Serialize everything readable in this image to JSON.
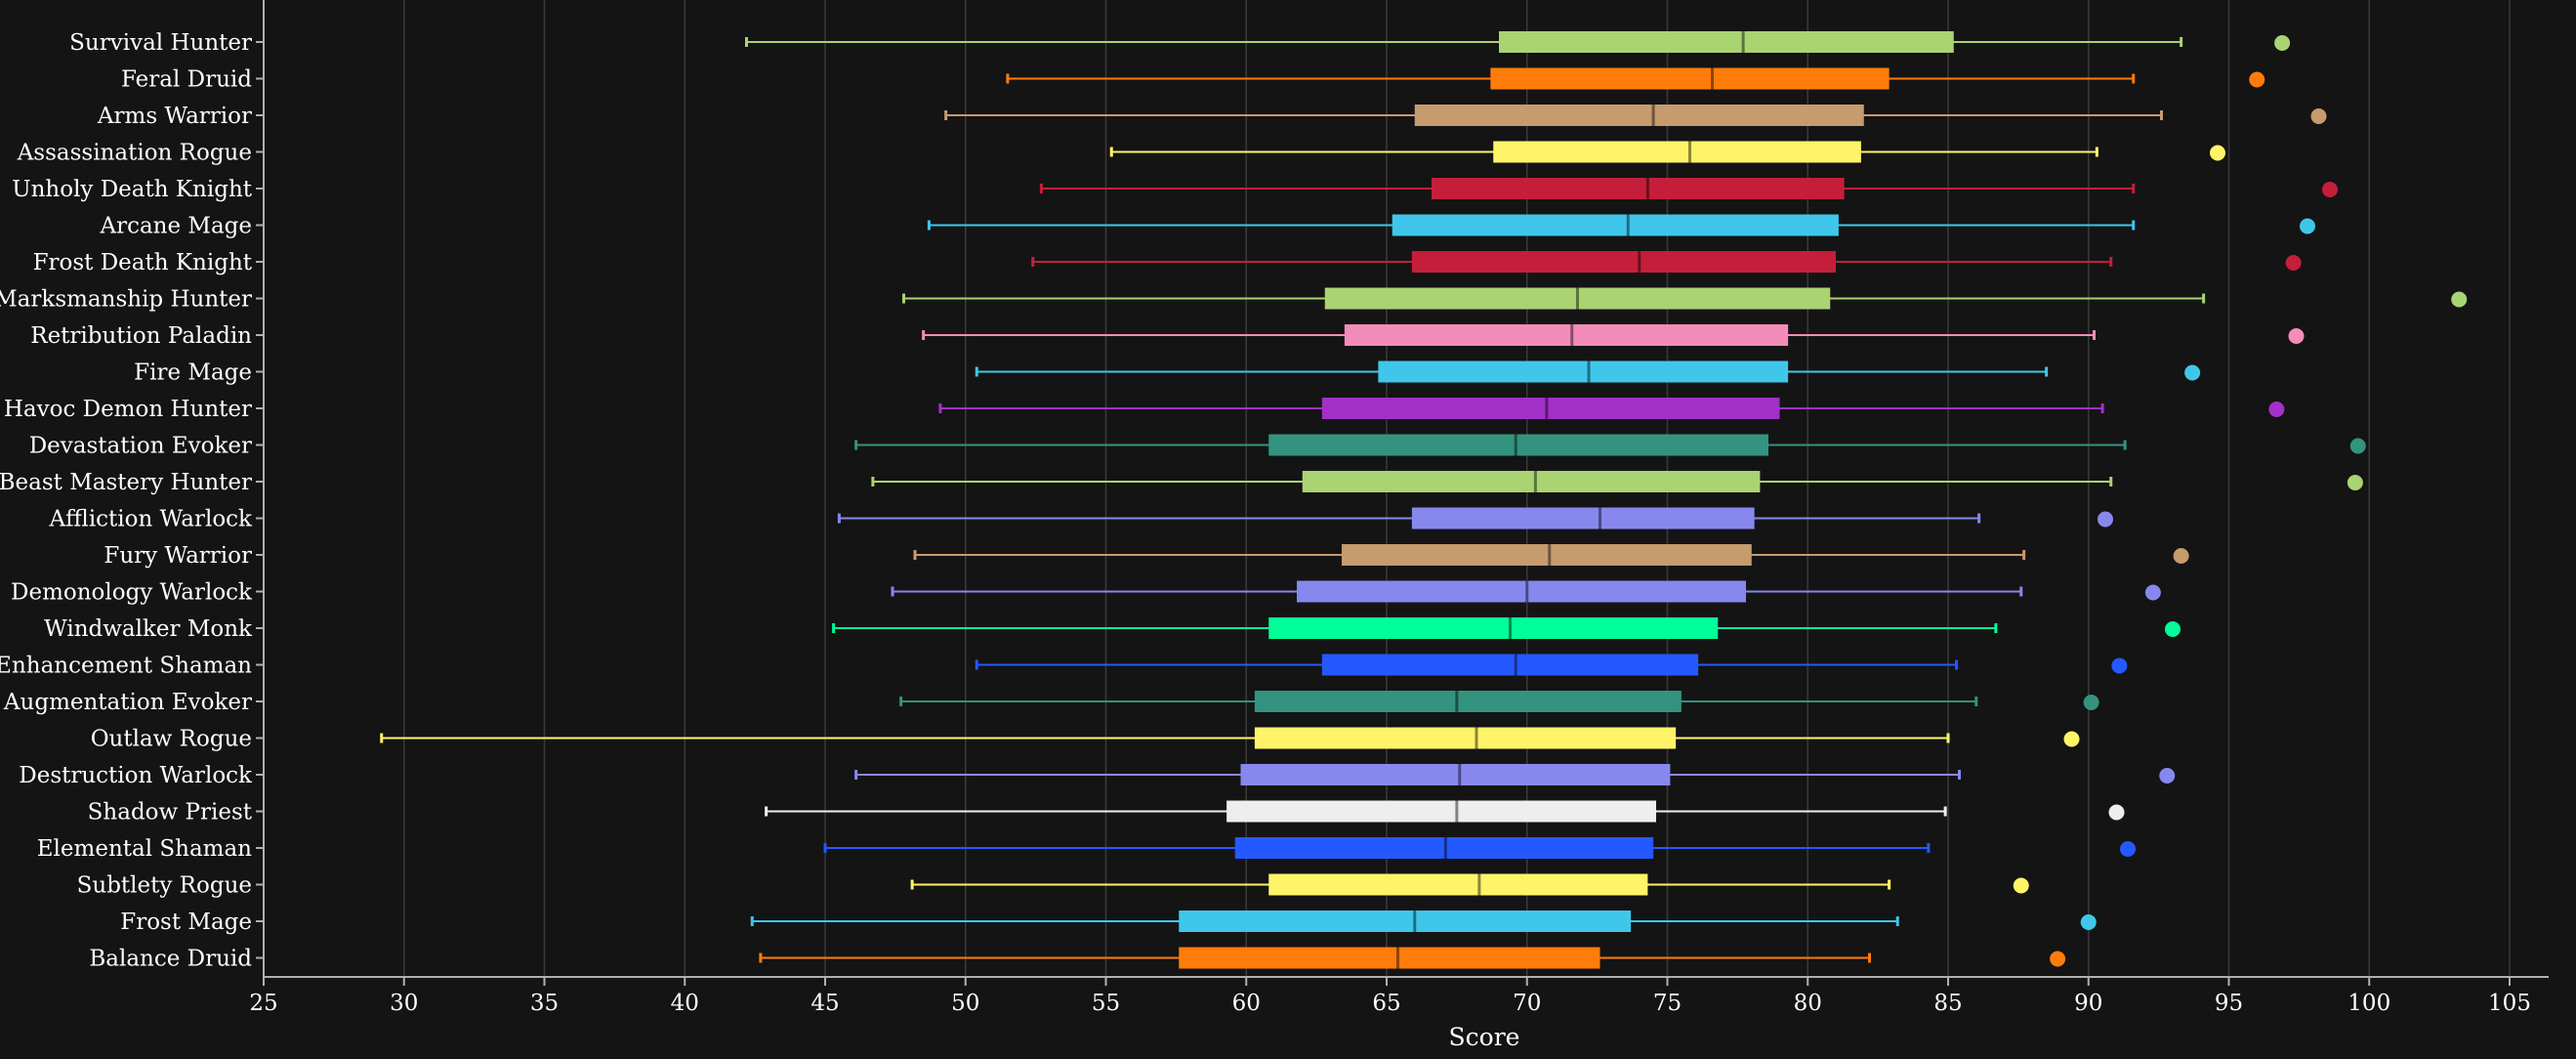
{
  "chart_data": {
    "type": "boxplot",
    "orientation": "horizontal",
    "xlabel": "Score",
    "xlim": [
      25,
      108
    ],
    "xticks": [
      25,
      30,
      35,
      40,
      45,
      50,
      55,
      60,
      65,
      70,
      75,
      80,
      85,
      90,
      95,
      100,
      105
    ],
    "grid": true,
    "legend": "none",
    "background": "#141414",
    "categories": [
      {
        "name": "Survival Hunter",
        "color": "#AAD372",
        "min": 42.2,
        "q1": 69.0,
        "median": 77.7,
        "q3": 85.2,
        "max": 93.3,
        "outlier": 96.9
      },
      {
        "name": "Feral Druid",
        "color": "#FF7C0A",
        "min": 51.5,
        "q1": 68.7,
        "median": 76.6,
        "q3": 82.9,
        "max": 91.6,
        "outlier": 96.0
      },
      {
        "name": "Arms Warrior",
        "color": "#C69B6D",
        "min": 49.3,
        "q1": 66.0,
        "median": 74.5,
        "q3": 82.0,
        "max": 92.6,
        "outlier": 98.2
      },
      {
        "name": "Assassination Rogue",
        "color": "#FFF468",
        "min": 55.2,
        "q1": 68.8,
        "median": 75.8,
        "q3": 81.9,
        "max": 90.3,
        "outlier": 94.6
      },
      {
        "name": "Unholy Death Knight",
        "color": "#C41E3A",
        "min": 52.7,
        "q1": 66.6,
        "median": 74.3,
        "q3": 81.3,
        "max": 91.6,
        "outlier": 98.6
      },
      {
        "name": "Arcane Mage",
        "color": "#3FC7EB",
        "min": 48.7,
        "q1": 65.2,
        "median": 73.6,
        "q3": 81.1,
        "max": 91.6,
        "outlier": 97.8
      },
      {
        "name": "Frost Death Knight",
        "color": "#C41E3A",
        "min": 52.4,
        "q1": 65.9,
        "median": 74.0,
        "q3": 81.0,
        "max": 90.8,
        "outlier": 97.3
      },
      {
        "name": "Marksmanship Hunter",
        "color": "#AAD372",
        "min": 47.8,
        "q1": 62.8,
        "median": 71.8,
        "q3": 80.8,
        "max": 94.1,
        "outlier": 103.2
      },
      {
        "name": "Retribution Paladin",
        "color": "#F48CBA",
        "min": 48.5,
        "q1": 63.5,
        "median": 71.6,
        "q3": 79.3,
        "max": 90.2,
        "outlier": 97.4
      },
      {
        "name": "Fire Mage",
        "color": "#3FC7EB",
        "min": 50.4,
        "q1": 64.7,
        "median": 72.2,
        "q3": 79.3,
        "max": 88.5,
        "outlier": 93.7
      },
      {
        "name": "Havoc Demon Hunter",
        "color": "#A330C9",
        "min": 49.1,
        "q1": 62.7,
        "median": 70.7,
        "q3": 79.0,
        "max": 90.5,
        "outlier": 96.7
      },
      {
        "name": "Devastation Evoker",
        "color": "#33937F",
        "min": 46.1,
        "q1": 60.8,
        "median": 69.6,
        "q3": 78.6,
        "max": 91.3,
        "outlier": 99.6
      },
      {
        "name": "Beast Mastery Hunter",
        "color": "#AAD372",
        "min": 46.7,
        "q1": 62.0,
        "median": 70.3,
        "q3": 78.3,
        "max": 90.8,
        "outlier": 99.5
      },
      {
        "name": "Affliction Warlock",
        "color": "#8788EE",
        "min": 45.5,
        "q1": 65.9,
        "median": 72.6,
        "q3": 78.1,
        "max": 86.1,
        "outlier": 90.6
      },
      {
        "name": "Fury Warrior",
        "color": "#C69B6D",
        "min": 48.2,
        "q1": 63.4,
        "median": 70.8,
        "q3": 78.0,
        "max": 87.7,
        "outlier": 93.3
      },
      {
        "name": "Demonology Warlock",
        "color": "#8788EE",
        "min": 47.4,
        "q1": 61.8,
        "median": 70.0,
        "q3": 77.8,
        "max": 87.6,
        "outlier": 92.3
      },
      {
        "name": "Windwalker Monk",
        "color": "#00FF98",
        "min": 45.3,
        "q1": 60.8,
        "median": 69.4,
        "q3": 76.8,
        "max": 86.7,
        "outlier": 93.0
      },
      {
        "name": "Enhancement Shaman",
        "color": "#2459FF",
        "min": 50.4,
        "q1": 62.7,
        "median": 69.6,
        "q3": 76.1,
        "max": 85.3,
        "outlier": 91.1
      },
      {
        "name": "Augmentation Evoker",
        "color": "#33937F",
        "min": 47.7,
        "q1": 60.3,
        "median": 67.5,
        "q3": 75.5,
        "max": 86.0,
        "outlier": 90.1
      },
      {
        "name": "Outlaw Rogue",
        "color": "#FFF468",
        "min": 29.2,
        "q1": 60.3,
        "median": 68.2,
        "q3": 75.3,
        "max": 85.0,
        "outlier": 89.4
      },
      {
        "name": "Destruction Warlock",
        "color": "#8788EE",
        "min": 46.1,
        "q1": 59.8,
        "median": 67.6,
        "q3": 75.1,
        "max": 85.4,
        "outlier": 92.8
      },
      {
        "name": "Shadow Priest",
        "color": "#EEEEEE",
        "min": 42.9,
        "q1": 59.3,
        "median": 67.5,
        "q3": 74.6,
        "max": 84.9,
        "outlier": 91.0
      },
      {
        "name": "Elemental Shaman",
        "color": "#2459FF",
        "min": 45.0,
        "q1": 59.6,
        "median": 67.1,
        "q3": 74.5,
        "max": 84.3,
        "outlier": 91.4
      },
      {
        "name": "Subtlety Rogue",
        "color": "#FFF468",
        "min": 48.1,
        "q1": 60.8,
        "median": 68.3,
        "q3": 74.3,
        "max": 82.9,
        "outlier": 87.6
      },
      {
        "name": "Frost Mage",
        "color": "#3FC7EB",
        "min": 42.4,
        "q1": 57.6,
        "median": 66.0,
        "q3": 73.7,
        "max": 83.2,
        "outlier": 90.0
      },
      {
        "name": "Balance Druid",
        "color": "#FF7C0A",
        "min": 42.7,
        "q1": 57.6,
        "median": 65.4,
        "q3": 72.6,
        "max": 82.2,
        "outlier": 88.9
      }
    ]
  }
}
